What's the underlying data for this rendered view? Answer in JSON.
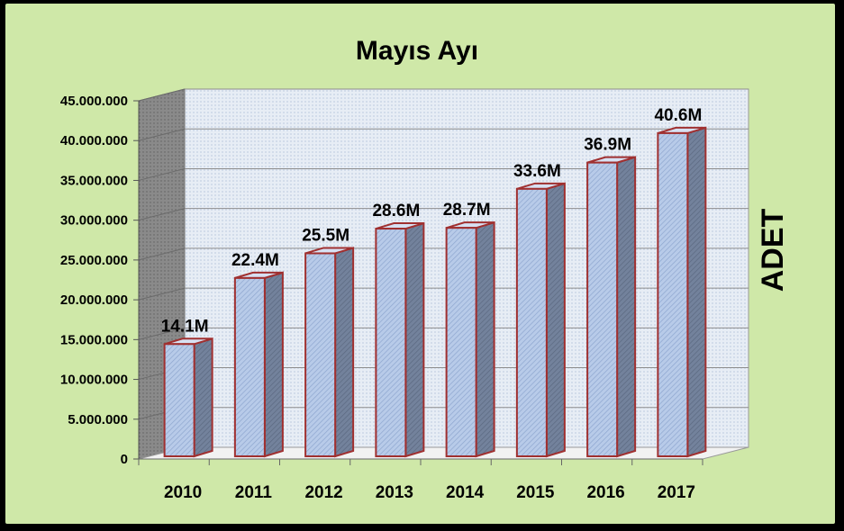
{
  "chart_data": {
    "type": "bar",
    "title": "Mayıs Ayı",
    "xlabel": "",
    "ylabel": "ADET",
    "categories": [
      "2010",
      "2011",
      "2012",
      "2013",
      "2014",
      "2015",
      "2016",
      "2017"
    ],
    "values": [
      14100000,
      22400000,
      25500000,
      28600000,
      28700000,
      33600000,
      36900000,
      40600000
    ],
    "data_labels": [
      "14.1M",
      "22.4M",
      "25.5M",
      "28.6M",
      "28.7M",
      "33.6M",
      "36.9M",
      "40.6M"
    ],
    "yticks": [
      "0",
      "5.000.000",
      "10.000.000",
      "15.000.000",
      "20.000.000",
      "25.000.000",
      "30.000.000",
      "35.000.000",
      "40.000.000",
      "45.000.000"
    ],
    "ylim": [
      0,
      45000000
    ],
    "grid": true,
    "legend": "none",
    "colors": {
      "background": "#cfe8a8",
      "bar_front": "#b4c8e8",
      "bar_side": "#6f7e98",
      "bar_top": "#d8e2f4",
      "bar_edge": "#a03030",
      "back_wall": "#e6ecf4",
      "side_wall": "#8c8c8c",
      "floor": "#eeeeee"
    }
  }
}
